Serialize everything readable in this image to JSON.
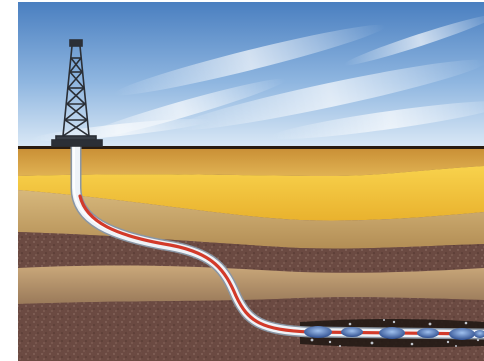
{
  "scene": {
    "subject": "horizontal-drilling-well",
    "colors": {
      "sky_top": "#4a7fc0",
      "sky_bottom": "#dbe9f6",
      "ground_line": "#2a1c10",
      "surface_layer": "#d4a24a",
      "bright_layer": "#f4c53a",
      "mid_layer": "#c9a76b",
      "rock_layer": "#6e4e45",
      "deep_layer": "#7a5a4e",
      "pipe_outer": "#e8eef4",
      "pipe_inner": "#d23a2a",
      "derrick": "#2b2f36",
      "fracture_blob": "#3b5fa0"
    },
    "icons": [
      "derrick-icon",
      "wellbore-pipe",
      "fracture-zone"
    ]
  }
}
